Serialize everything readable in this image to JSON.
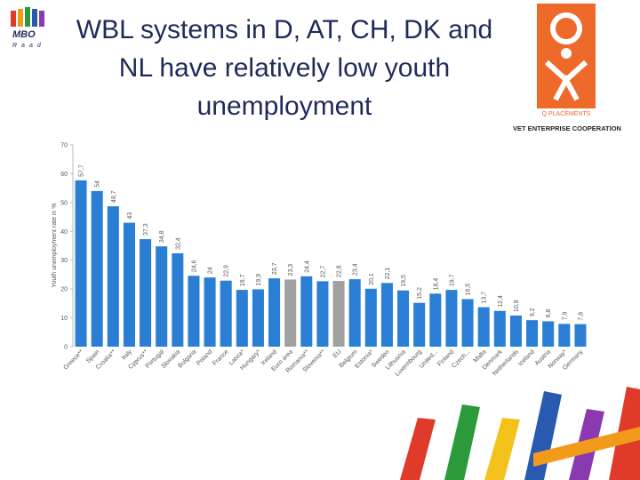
{
  "logos": {
    "left_top": "MBO",
    "left_bottom": "Raad",
    "right_top": "Q PLACEMENTS",
    "right_bottom": "VET ENTERPRISE COOPERATION"
  },
  "chart_data": {
    "type": "bar",
    "title": "WBL systems in D, AT, CH, DK and NL have relatively low youth unemployment",
    "y_label": "Youth unemployment rate in %",
    "categories": [
      "Greece**",
      "Spain",
      "Croatia**",
      "Italy",
      "Cyprus**",
      "Portugal",
      "Slovakia",
      "Bulgaria",
      "Poland",
      "France",
      "Latvia*",
      "Hungary*",
      "Ireland",
      "Euro area",
      "Romania**",
      "Slovenia**",
      "EU",
      "Belgium",
      "Estonia*",
      "Sweden",
      "Lithuania",
      "Luxembourg",
      "United...",
      "Finland",
      "Czech...",
      "Malta",
      "Denmark",
      "Netherlands",
      "Iceland",
      "Austria",
      "Norway*",
      "Germany"
    ],
    "values": [
      57.7,
      54,
      48.7,
      43,
      37.3,
      34.8,
      32.4,
      24.6,
      24,
      22.9,
      19.7,
      19.9,
      23.7,
      23.3,
      24.4,
      22.7,
      22.8,
      23.4,
      20.1,
      22.1,
      19.5,
      15.2,
      18.4,
      19.7,
      16.5,
      13.7,
      12.4,
      10.8,
      9.2,
      8.8,
      7.9,
      7.8
    ],
    "value_labels": [
      "57,7",
      "54",
      "48,7",
      "43",
      "37,3",
      "34,8",
      "32,4",
      "24,6",
      "24",
      "22,9",
      "19,7",
      "19,9",
      "23,7",
      "23,3",
      "24,4",
      "22,7",
      "22,8",
      "23,4",
      "20,1",
      "22,1",
      "19,5",
      "15,2",
      "18,4",
      "19,7",
      "16,5",
      "13,7",
      "12,4",
      "10,8",
      "9,2",
      "8,8",
      "7,9",
      "7,8"
    ],
    "colors": [
      "#2a7fd4",
      "#2a7fd4",
      "#2a7fd4",
      "#2a7fd4",
      "#2a7fd4",
      "#2a7fd4",
      "#2a7fd4",
      "#2a7fd4",
      "#2a7fd4",
      "#2a7fd4",
      "#2a7fd4",
      "#2a7fd4",
      "#2a7fd4",
      "#a0a0a0",
      "#2a7fd4",
      "#2a7fd4",
      "#a0a0a0",
      "#2a7fd4",
      "#2a7fd4",
      "#2a7fd4",
      "#2a7fd4",
      "#2a7fd4",
      "#2a7fd4",
      "#2a7fd4",
      "#2a7fd4",
      "#2a7fd4",
      "#2a7fd4",
      "#2a7fd4",
      "#2a7fd4",
      "#2a7fd4",
      "#2a7fd4",
      "#2a7fd4"
    ],
    "ylim": [
      0,
      70
    ],
    "yticks": [
      0,
      10,
      20,
      30,
      40,
      50,
      60,
      70
    ]
  }
}
